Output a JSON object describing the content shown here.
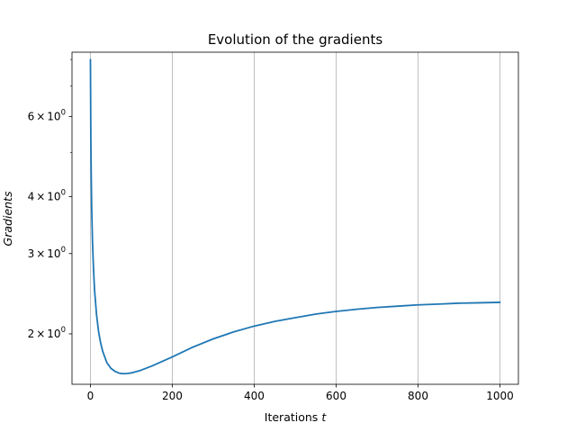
{
  "chart_data": {
    "type": "line",
    "title": "Evolution of the gradients",
    "xlabel": "Iterations",
    "xlabel_var": "t",
    "ylabel": "Gradients",
    "yscale": "log",
    "xlim": [
      -45,
      1045
    ],
    "ylim": [
      1.55,
      8.3
    ],
    "grid": "x-only",
    "x_ticks": [
      {
        "value": 0,
        "label": "0"
      },
      {
        "value": 200,
        "label": "200"
      },
      {
        "value": 400,
        "label": "400"
      },
      {
        "value": 600,
        "label": "600"
      },
      {
        "value": 800,
        "label": "800"
      },
      {
        "value": 1000,
        "label": "1000"
      }
    ],
    "y_ticks": [
      {
        "value": 2,
        "base": "2",
        "mult": "×",
        "pow": "10",
        "exp": "0"
      },
      {
        "value": 3,
        "base": "3",
        "mult": "×",
        "pow": "10",
        "exp": "0"
      },
      {
        "value": 4,
        "base": "4",
        "mult": "×",
        "pow": "10",
        "exp": "0"
      },
      {
        "value": 6,
        "base": "6",
        "mult": "×",
        "pow": "10",
        "exp": "0"
      }
    ],
    "y_minor_ticks": [
      5,
      7,
      8
    ],
    "series": [
      {
        "color": "#1f77b4",
        "x": [
          0,
          1,
          2,
          3,
          5,
          7,
          10,
          15,
          20,
          25,
          30,
          40,
          50,
          60,
          70,
          80,
          90,
          100,
          120,
          150,
          200,
          250,
          300,
          350,
          400,
          450,
          500,
          550,
          600,
          650,
          700,
          750,
          800,
          850,
          900,
          950,
          1000
        ],
        "y": [
          8.0,
          5.4,
          4.4,
          3.8,
          3.2,
          2.85,
          2.5,
          2.2,
          2.02,
          1.91,
          1.83,
          1.73,
          1.68,
          1.655,
          1.64,
          1.635,
          1.637,
          1.642,
          1.66,
          1.7,
          1.78,
          1.87,
          1.95,
          2.02,
          2.08,
          2.13,
          2.17,
          2.21,
          2.24,
          2.265,
          2.285,
          2.3,
          2.315,
          2.325,
          2.335,
          2.34,
          2.345
        ]
      }
    ]
  }
}
